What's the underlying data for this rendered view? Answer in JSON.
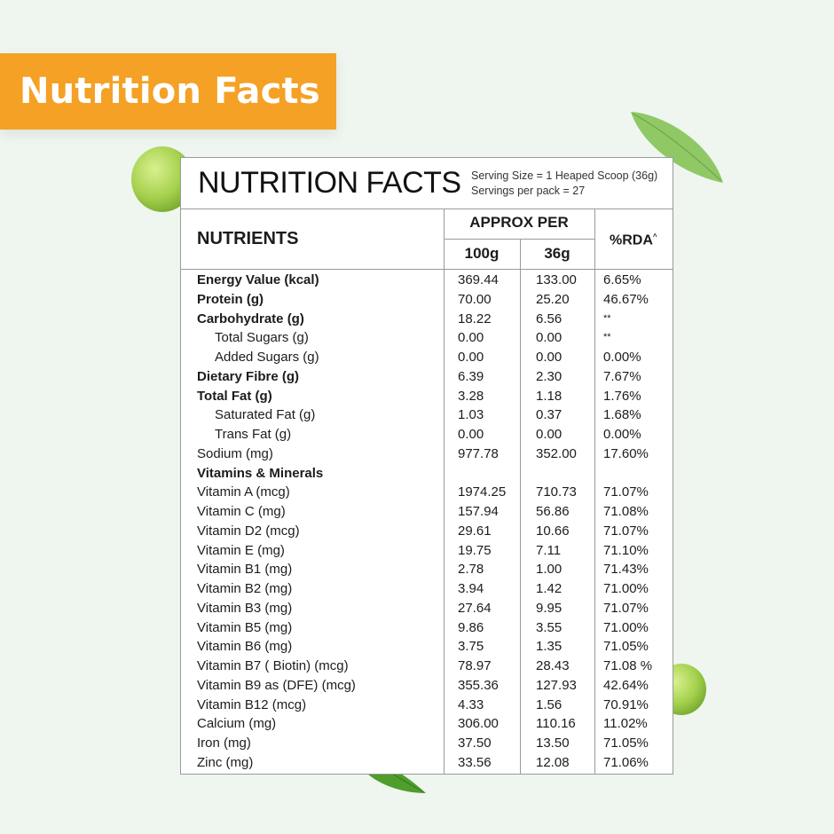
{
  "banner": {
    "title": "Nutrition Facts"
  },
  "panel": {
    "title": "NUTRITION FACTS",
    "serving_size": "Serving Size = 1 Heaped Scoop (36g)",
    "servings_per_pack": "Servings per pack = 27"
  },
  "headers": {
    "nutrients": "NUTRIENTS",
    "approx_per": "APPROX PER",
    "col_100g": "100g",
    "col_36g": "36g",
    "rda": "%RDA",
    "rda_mark": "^"
  },
  "colors": {
    "banner": "#f4a126",
    "background": "#eef6ef",
    "pea": "#9ccc4a",
    "leaf": "#5fa832"
  },
  "rows": [
    {
      "name": "Energy Value (kcal)",
      "v100": "369.44",
      "v36": "133.00",
      "rda": "6.65%",
      "style": "bold"
    },
    {
      "name": "Protein (g)",
      "v100": "70.00",
      "v36": "25.20",
      "rda": "46.67%",
      "style": "bold"
    },
    {
      "name": "Carbohydrate (g)",
      "v100": "18.22",
      "v36": "6.56",
      "rda": "**",
      "style": "bold"
    },
    {
      "name": "Total Sugars (g)",
      "v100": "0.00",
      "v36": "0.00",
      "rda": "**",
      "style": "sub"
    },
    {
      "name": "Added Sugars (g)",
      "v100": "0.00",
      "v36": "0.00",
      "rda": "0.00%",
      "style": "sub"
    },
    {
      "name": "Dietary Fibre (g)",
      "v100": "6.39",
      "v36": "2.30",
      "rda": "7.67%",
      "style": "bold"
    },
    {
      "name": "Total Fat (g)",
      "v100": "3.28",
      "v36": "1.18",
      "rda": "1.76%",
      "style": "bold"
    },
    {
      "name": "Saturated Fat (g)",
      "v100": "1.03",
      "v36": "0.37",
      "rda": "1.68%",
      "style": "sub"
    },
    {
      "name": "Trans Fat (g)",
      "v100": "0.00",
      "v36": "0.00",
      "rda": "0.00%",
      "style": "sub"
    },
    {
      "name": "Sodium (mg)",
      "v100": "977.78",
      "v36": "352.00",
      "rda": "17.60%",
      "style": "normal"
    },
    {
      "name": "Vitamins & Minerals",
      "v100": "",
      "v36": "",
      "rda": "",
      "style": "bold"
    },
    {
      "name": "Vitamin A (mcg)",
      "v100": "1974.25",
      "v36": "710.73",
      "rda": "71.07%",
      "style": "normal"
    },
    {
      "name": "Vitamin C (mg)",
      "v100": "157.94",
      "v36": "56.86",
      "rda": "71.08%",
      "style": "normal"
    },
    {
      "name": "Vitamin D2 (mcg)",
      "v100": "29.61",
      "v36": "10.66",
      "rda": "71.07%",
      "style": "normal"
    },
    {
      "name": "Vitamin E (mg)",
      "v100": "19.75",
      "v36": "7.11",
      "rda": "71.10%",
      "style": "normal"
    },
    {
      "name": "Vitamin B1 (mg)",
      "v100": "2.78",
      "v36": "1.00",
      "rda": "71.43%",
      "style": "normal"
    },
    {
      "name": "Vitamin B2 (mg)",
      "v100": "3.94",
      "v36": "1.42",
      "rda": "71.00%",
      "style": "normal"
    },
    {
      "name": "Vitamin B3 (mg)",
      "v100": "27.64",
      "v36": "9.95",
      "rda": "71.07%",
      "style": "normal"
    },
    {
      "name": "Vitamin B5 (mg)",
      "v100": "9.86",
      "v36": "3.55",
      "rda": "71.00%",
      "style": "normal"
    },
    {
      "name": "Vitamin B6 (mg)",
      "v100": "3.75",
      "v36": "1.35",
      "rda": "71.05%",
      "style": "normal"
    },
    {
      "name": "Vitamin B7 ( Biotin) (mcg)",
      "v100": "78.97",
      "v36": "28.43",
      "rda": "71.08 %",
      "style": "normal"
    },
    {
      "name": "Vitamin B9 as (DFE) (mcg)",
      "v100": "355.36",
      "v36": "127.93",
      "rda": "42.64%",
      "style": "normal"
    },
    {
      "name": "Vitamin B12 (mcg)",
      "v100": "4.33",
      "v36": "1.56",
      "rda": "70.91%",
      "style": "normal"
    },
    {
      "name": "Calcium (mg)",
      "v100": "306.00",
      "v36": "110.16",
      "rda": "11.02%",
      "style": "normal"
    },
    {
      "name": "Iron (mg)",
      "v100": "37.50",
      "v36": "13.50",
      "rda": "71.05%",
      "style": "normal"
    },
    {
      "name": "Zinc (mg)",
      "v100": "33.56",
      "v36": "12.08",
      "rda": "71.06%",
      "style": "normal"
    }
  ]
}
